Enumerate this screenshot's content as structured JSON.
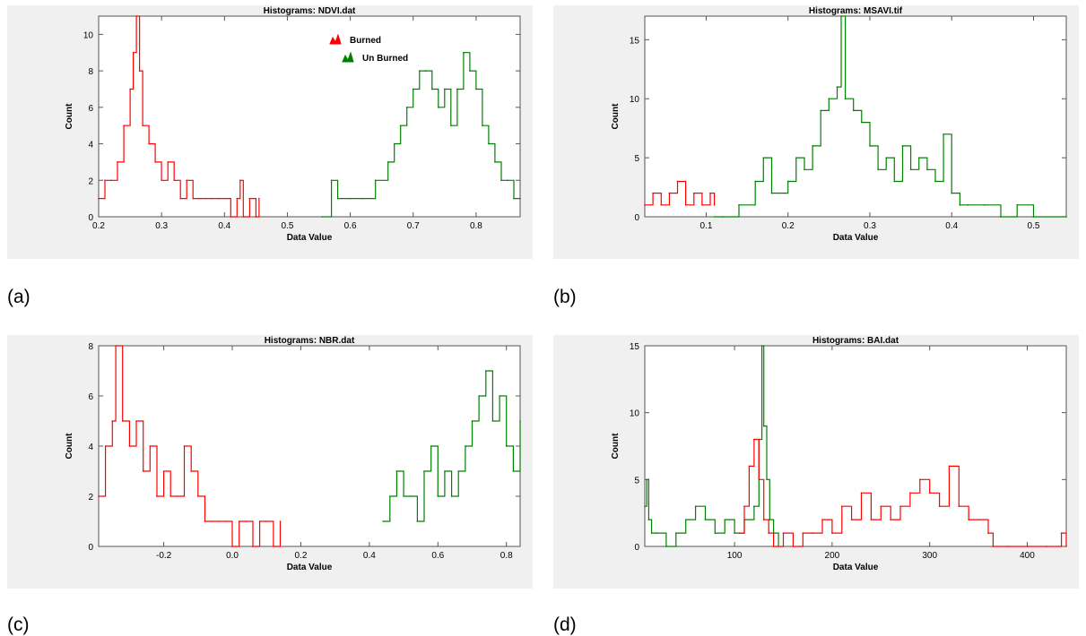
{
  "captions": [
    "(a)",
    "(b)",
    "(c)",
    "(d)"
  ],
  "colors": {
    "burned": "#ff0000",
    "unburned": "#008000",
    "frame": "#555555",
    "panel_bg": "#f0f0f0"
  },
  "chart_data": [
    {
      "type": "line",
      "title": "Histograms: NDVI.dat",
      "xlabel": "Data Value",
      "ylabel": "Count",
      "xlim": [
        0.2,
        0.87
      ],
      "ylim": [
        0,
        11
      ],
      "xticks": [
        0.2,
        0.3,
        0.4,
        0.5,
        0.6,
        0.7,
        0.8
      ],
      "xtick_labels": [
        "0.2",
        "0.3",
        "0.4",
        "0.5",
        "0.6",
        "0.7",
        "0.8"
      ],
      "yticks": [
        0,
        2,
        4,
        6,
        8,
        10
      ],
      "ytick_labels": [
        "0",
        "2",
        "4",
        "6",
        "8",
        "10"
      ],
      "legend": {
        "placement": "top-center",
        "entries": [
          {
            "label": "Burned",
            "color": "#ff0000"
          },
          {
            "label": "Un Burned",
            "color": "#008000"
          }
        ]
      },
      "series": [
        {
          "color": "#ff0000",
          "x": [
            0.2,
            0.21,
            0.22,
            0.23,
            0.24,
            0.25,
            0.255,
            0.26,
            0.265,
            0.27,
            0.28,
            0.29,
            0.3,
            0.31,
            0.32,
            0.33,
            0.34,
            0.35,
            0.36,
            0.37,
            0.38,
            0.39,
            0.4,
            0.41,
            0.42,
            0.425,
            0.43,
            0.44,
            0.45,
            0.455
          ],
          "y": [
            1,
            2,
            2,
            3,
            5,
            7,
            9,
            11,
            8,
            5,
            4,
            3,
            2,
            3,
            2,
            1,
            2,
            1,
            1,
            1,
            1,
            1,
            1,
            0,
            1,
            2,
            0,
            1,
            0,
            1
          ]
        },
        {
          "color": "#008000",
          "x": [
            0.555,
            0.57,
            0.58,
            0.6,
            0.62,
            0.64,
            0.66,
            0.67,
            0.68,
            0.69,
            0.7,
            0.71,
            0.72,
            0.73,
            0.74,
            0.75,
            0.76,
            0.77,
            0.78,
            0.79,
            0.8,
            0.81,
            0.82,
            0.83,
            0.84,
            0.85,
            0.86,
            0.87
          ],
          "y": [
            0,
            2,
            1,
            1,
            1,
            2,
            3,
            4,
            5,
            6,
            7,
            8,
            8,
            7,
            6,
            7,
            5,
            7,
            9,
            8,
            7,
            5,
            4,
            3,
            2,
            2,
            1,
            1
          ]
        }
      ]
    },
    {
      "type": "line",
      "title": "Histograms: MSAVI.tif",
      "xlabel": "Data Value",
      "ylabel": "Count",
      "xlim": [
        0.025,
        0.54
      ],
      "ylim": [
        0,
        17
      ],
      "xticks": [
        0.1,
        0.2,
        0.3,
        0.4,
        0.5
      ],
      "xtick_labels": [
        "0.1",
        "0.2",
        "0.3",
        "0.4",
        "0.5"
      ],
      "yticks": [
        0,
        5,
        10,
        15
      ],
      "ytick_labels": [
        "0",
        "5",
        "10",
        "15"
      ],
      "series": [
        {
          "color": "#ff0000",
          "x": [
            0.025,
            0.035,
            0.045,
            0.055,
            0.065,
            0.075,
            0.085,
            0.095,
            0.105,
            0.11
          ],
          "y": [
            1,
            2,
            1,
            2,
            3,
            1,
            2,
            1,
            2,
            1
          ]
        },
        {
          "color": "#008000",
          "x": [
            0.11,
            0.12,
            0.14,
            0.16,
            0.17,
            0.18,
            0.2,
            0.21,
            0.22,
            0.23,
            0.24,
            0.25,
            0.26,
            0.265,
            0.27,
            0.28,
            0.29,
            0.3,
            0.31,
            0.32,
            0.33,
            0.34,
            0.35,
            0.36,
            0.37,
            0.38,
            0.39,
            0.4,
            0.41,
            0.42,
            0.44,
            0.46,
            0.48,
            0.5,
            0.54
          ],
          "y": [
            0,
            0,
            1,
            3,
            5,
            2,
            3,
            5,
            4,
            6,
            9,
            10,
            11,
            17,
            10,
            9,
            8,
            6,
            4,
            5,
            3,
            6,
            4,
            5,
            4,
            3,
            7,
            2,
            1,
            1,
            1,
            0,
            1,
            0,
            0
          ]
        }
      ]
    },
    {
      "type": "line",
      "title": "Histograms: NBR.dat",
      "xlabel": "Data Value",
      "ylabel": "Count",
      "xlim": [
        -0.39,
        0.84
      ],
      "ylim": [
        0,
        8
      ],
      "xticks": [
        -0.2,
        0.0,
        0.2,
        0.4,
        0.6,
        0.8
      ],
      "xtick_labels": [
        "-0.2",
        "0.0",
        "0.2",
        "0.4",
        "0.6",
        "0.8"
      ],
      "yticks": [
        0,
        2,
        4,
        6,
        8
      ],
      "ytick_labels": [
        "0",
        "2",
        "4",
        "6",
        "8"
      ],
      "series": [
        {
          "color": "#ff0000",
          "x": [
            -0.39,
            -0.37,
            -0.35,
            -0.34,
            -0.32,
            -0.3,
            -0.28,
            -0.26,
            -0.24,
            -0.22,
            -0.2,
            -0.18,
            -0.16,
            -0.14,
            -0.12,
            -0.1,
            -0.08,
            -0.06,
            -0.04,
            -0.02,
            0.0,
            0.02,
            0.04,
            0.06,
            0.08,
            0.1,
            0.12,
            0.14
          ],
          "y": [
            2,
            4,
            5,
            8,
            5,
            4,
            5,
            3,
            4,
            2,
            3,
            2,
            2,
            4,
            3,
            2,
            1,
            1,
            1,
            1,
            0,
            1,
            1,
            0,
            1,
            1,
            0,
            1
          ]
        },
        {
          "color": "#008000",
          "x": [
            0.44,
            0.46,
            0.48,
            0.5,
            0.52,
            0.54,
            0.56,
            0.58,
            0.6,
            0.62,
            0.64,
            0.66,
            0.68,
            0.7,
            0.72,
            0.74,
            0.76,
            0.78,
            0.8,
            0.82,
            0.84
          ],
          "y": [
            1,
            2,
            3,
            2,
            2,
            1,
            3,
            4,
            2,
            3,
            2,
            3,
            4,
            5,
            6,
            7,
            5,
            6,
            4,
            3,
            5
          ]
        }
      ]
    },
    {
      "type": "line",
      "title": "Histograms: BAI.dat",
      "xlabel": "Data Value",
      "ylabel": "Count",
      "xlim": [
        8,
        440
      ],
      "ylim": [
        0,
        15
      ],
      "xticks": [
        100,
        200,
        300,
        400
      ],
      "xtick_labels": [
        "100",
        "200",
        "300",
        "400"
      ],
      "yticks": [
        0,
        5,
        10,
        15
      ],
      "ytick_labels": [
        "0",
        "5",
        "10",
        "15"
      ],
      "series": [
        {
          "color": "#008000",
          "x": [
            8,
            10,
            12,
            15,
            20,
            30,
            40,
            50,
            60,
            70,
            80,
            90,
            100,
            110,
            120,
            125,
            128,
            130,
            133,
            136,
            140,
            145
          ],
          "y": [
            3,
            5,
            2,
            1,
            1,
            0,
            1,
            2,
            3,
            2,
            1,
            2,
            1,
            2,
            3,
            8,
            15,
            9,
            5,
            2,
            1,
            0
          ]
        },
        {
          "color": "#ff0000",
          "x": [
            105,
            110,
            115,
            120,
            125,
            130,
            135,
            140,
            150,
            160,
            170,
            180,
            190,
            200,
            210,
            220,
            230,
            240,
            250,
            260,
            270,
            280,
            290,
            300,
            310,
            320,
            330,
            340,
            350,
            360,
            365,
            380,
            400,
            420,
            435,
            440
          ],
          "y": [
            1,
            3,
            6,
            8,
            5,
            2,
            1,
            0,
            1,
            0,
            1,
            1,
            2,
            1,
            3,
            2,
            4,
            2,
            3,
            2,
            3,
            4,
            5,
            4,
            3,
            6,
            3,
            2,
            2,
            1,
            0,
            0,
            0,
            0,
            1,
            0
          ]
        }
      ]
    }
  ]
}
